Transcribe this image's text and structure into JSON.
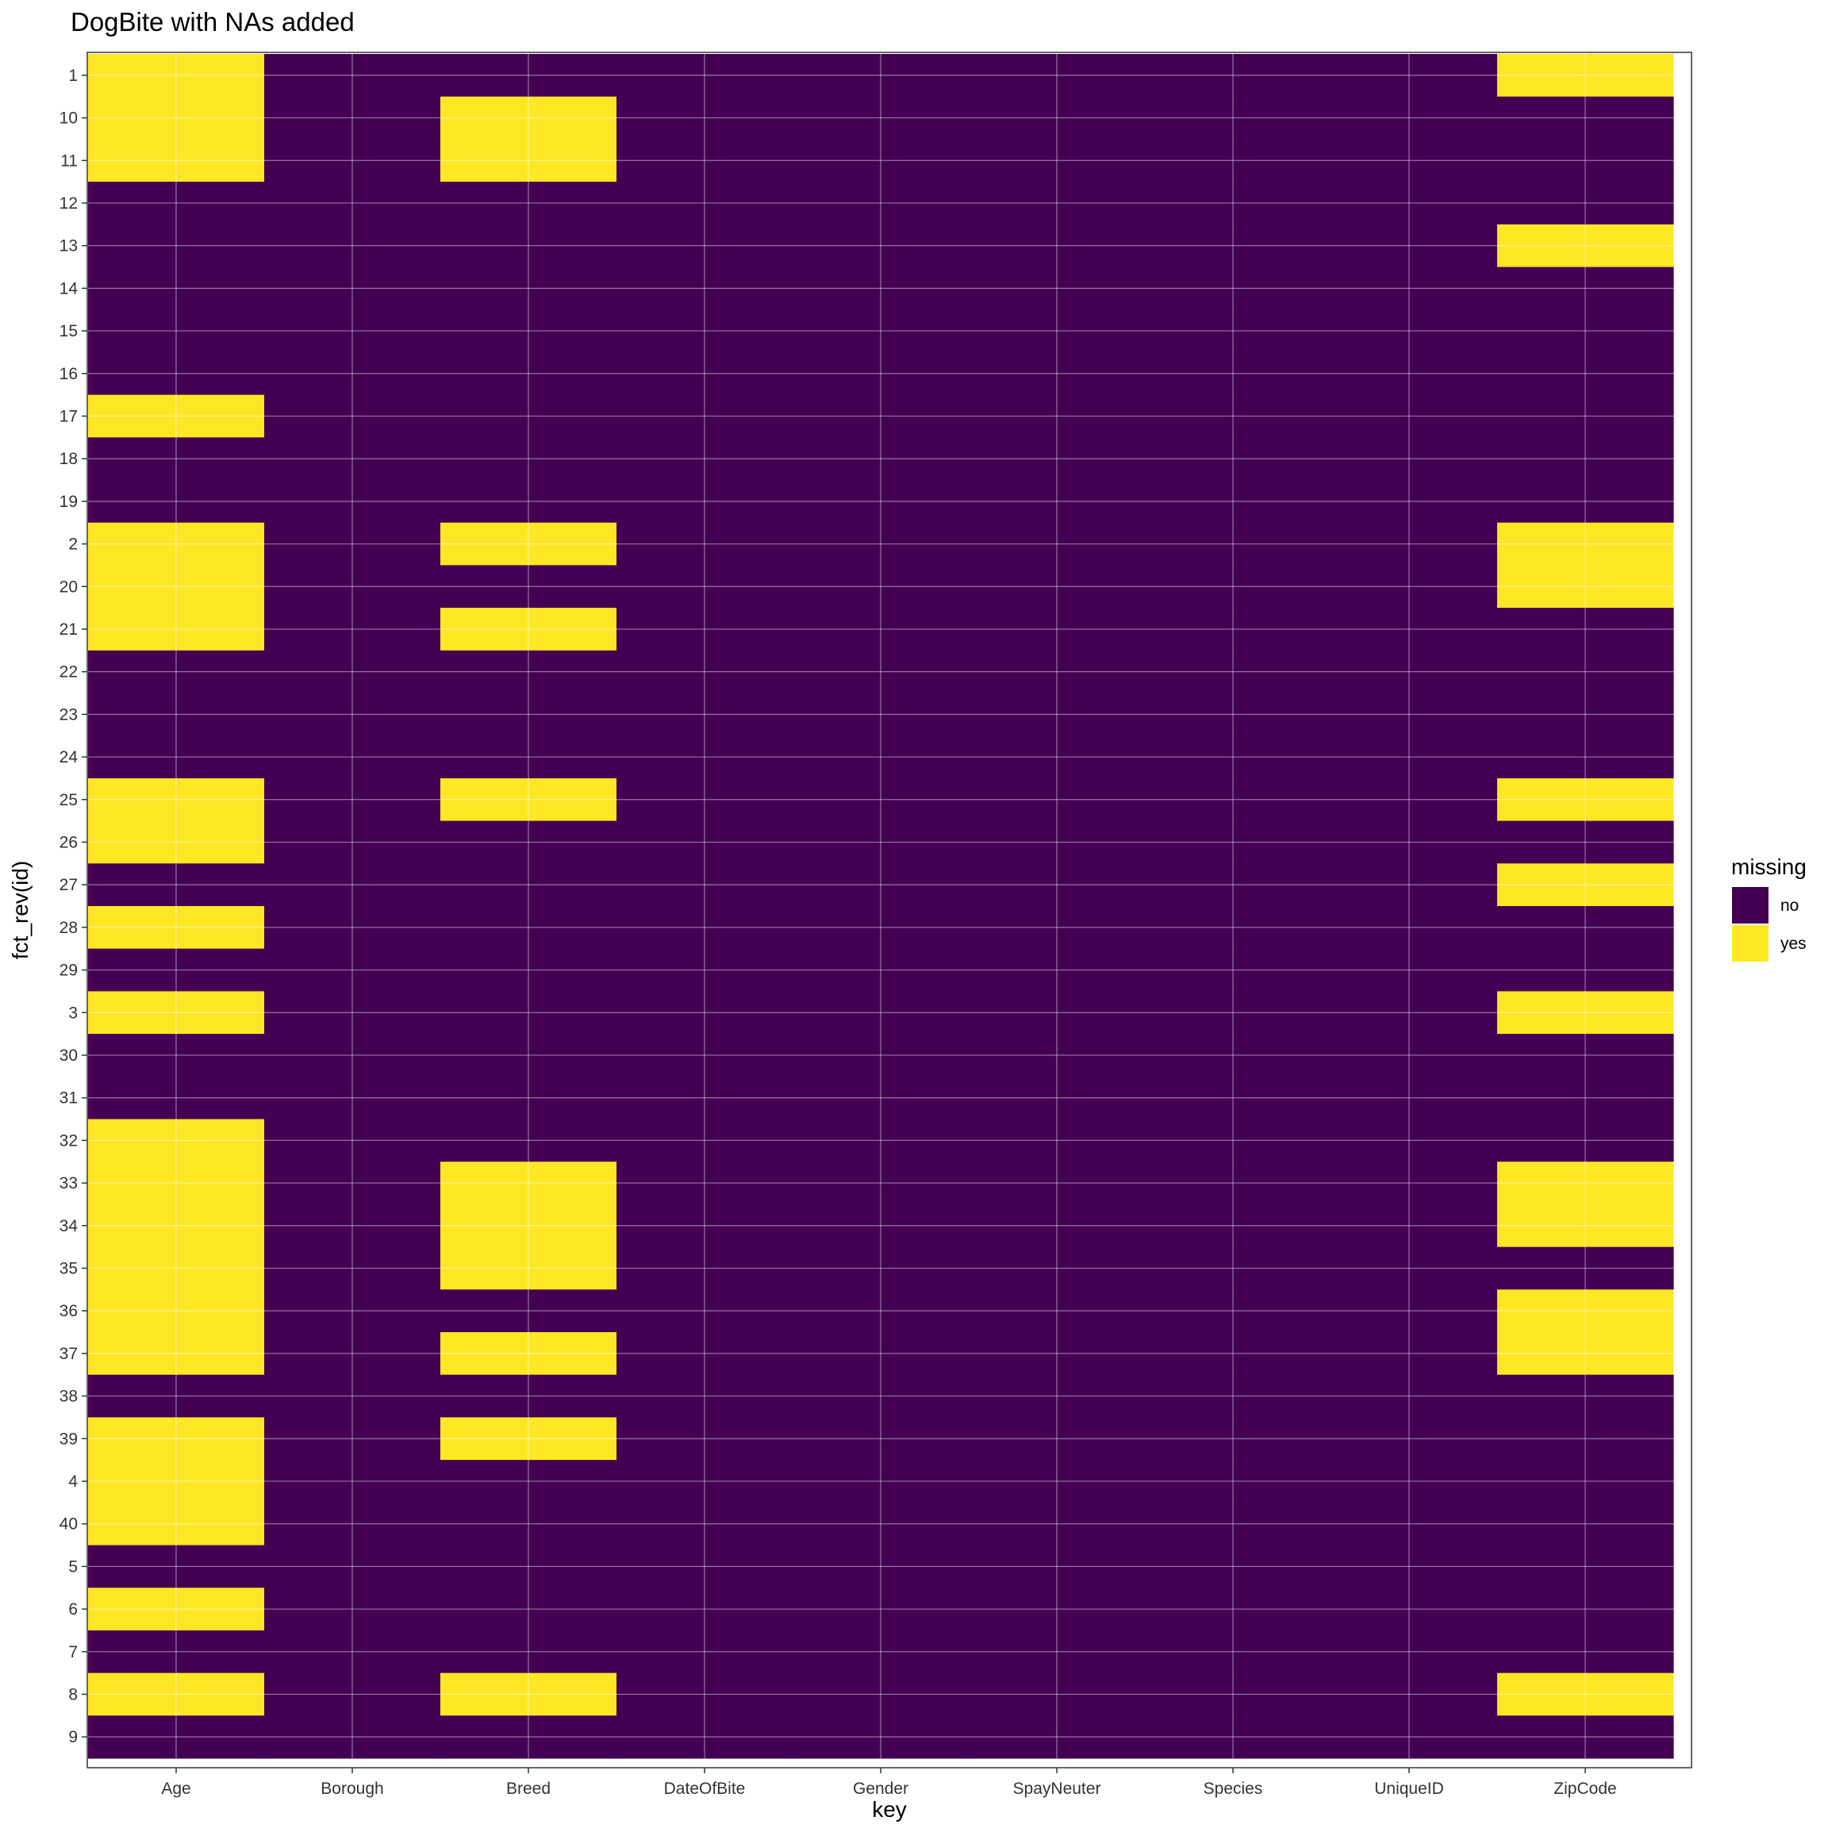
{
  "chart_data": {
    "type": "heatmap",
    "title": "DogBite with NAs added",
    "xlabel": "key",
    "ylabel": "fct_rev(id)",
    "x_categories": [
      "Age",
      "Borough",
      "Breed",
      "DateOfBite",
      "Gender",
      "SpayNeuter",
      "Species",
      "UniqueID",
      "ZipCode"
    ],
    "y_categories": [
      "1",
      "10",
      "11",
      "12",
      "13",
      "14",
      "15",
      "16",
      "17",
      "18",
      "19",
      "2",
      "20",
      "21",
      "22",
      "23",
      "24",
      "25",
      "26",
      "27",
      "28",
      "29",
      "3",
      "30",
      "31",
      "32",
      "33",
      "34",
      "35",
      "36",
      "37",
      "38",
      "39",
      "4",
      "40",
      "5",
      "6",
      "7",
      "8",
      "9"
    ],
    "legend": {
      "title": "missing",
      "position": "right",
      "entries": [
        {
          "label": "no",
          "color": "#440154"
        },
        {
          "label": "yes",
          "color": "#FDE725"
        }
      ]
    },
    "colors": {
      "no": "#440154",
      "yes": "#FDE725"
    },
    "missing": {
      "Age": [
        "yes",
        "yes",
        "yes",
        "no",
        "no",
        "no",
        "no",
        "no",
        "yes",
        "no",
        "no",
        "yes",
        "yes",
        "yes",
        "no",
        "no",
        "no",
        "yes",
        "yes",
        "no",
        "yes",
        "no",
        "yes",
        "no",
        "no",
        "yes",
        "yes",
        "yes",
        "yes",
        "yes",
        "yes",
        "no",
        "yes",
        "yes",
        "yes",
        "no",
        "yes",
        "no",
        "yes",
        "no"
      ],
      "Borough": [
        "no",
        "no",
        "no",
        "no",
        "no",
        "no",
        "no",
        "no",
        "no",
        "no",
        "no",
        "no",
        "no",
        "no",
        "no",
        "no",
        "no",
        "no",
        "no",
        "no",
        "no",
        "no",
        "no",
        "no",
        "no",
        "no",
        "no",
        "no",
        "no",
        "no",
        "no",
        "no",
        "no",
        "no",
        "no",
        "no",
        "no",
        "no",
        "no",
        "no"
      ],
      "Breed": [
        "no",
        "yes",
        "yes",
        "no",
        "no",
        "no",
        "no",
        "no",
        "no",
        "no",
        "no",
        "yes",
        "no",
        "yes",
        "no",
        "no",
        "no",
        "yes",
        "no",
        "no",
        "no",
        "no",
        "no",
        "no",
        "no",
        "no",
        "yes",
        "yes",
        "yes",
        "no",
        "yes",
        "no",
        "yes",
        "no",
        "no",
        "no",
        "no",
        "no",
        "yes",
        "no"
      ],
      "DateOfBite": [
        "no",
        "no",
        "no",
        "no",
        "no",
        "no",
        "no",
        "no",
        "no",
        "no",
        "no",
        "no",
        "no",
        "no",
        "no",
        "no",
        "no",
        "no",
        "no",
        "no",
        "no",
        "no",
        "no",
        "no",
        "no",
        "no",
        "no",
        "no",
        "no",
        "no",
        "no",
        "no",
        "no",
        "no",
        "no",
        "no",
        "no",
        "no",
        "no",
        "no"
      ],
      "Gender": [
        "no",
        "no",
        "no",
        "no",
        "no",
        "no",
        "no",
        "no",
        "no",
        "no",
        "no",
        "no",
        "no",
        "no",
        "no",
        "no",
        "no",
        "no",
        "no",
        "no",
        "no",
        "no",
        "no",
        "no",
        "no",
        "no",
        "no",
        "no",
        "no",
        "no",
        "no",
        "no",
        "no",
        "no",
        "no",
        "no",
        "no",
        "no",
        "no",
        "no"
      ],
      "SpayNeuter": [
        "no",
        "no",
        "no",
        "no",
        "no",
        "no",
        "no",
        "no",
        "no",
        "no",
        "no",
        "no",
        "no",
        "no",
        "no",
        "no",
        "no",
        "no",
        "no",
        "no",
        "no",
        "no",
        "no",
        "no",
        "no",
        "no",
        "no",
        "no",
        "no",
        "no",
        "no",
        "no",
        "no",
        "no",
        "no",
        "no",
        "no",
        "no",
        "no",
        "no"
      ],
      "Species": [
        "no",
        "no",
        "no",
        "no",
        "no",
        "no",
        "no",
        "no",
        "no",
        "no",
        "no",
        "no",
        "no",
        "no",
        "no",
        "no",
        "no",
        "no",
        "no",
        "no",
        "no",
        "no",
        "no",
        "no",
        "no",
        "no",
        "no",
        "no",
        "no",
        "no",
        "no",
        "no",
        "no",
        "no",
        "no",
        "no",
        "no",
        "no",
        "no",
        "no"
      ],
      "UniqueID": [
        "no",
        "no",
        "no",
        "no",
        "no",
        "no",
        "no",
        "no",
        "no",
        "no",
        "no",
        "no",
        "no",
        "no",
        "no",
        "no",
        "no",
        "no",
        "no",
        "no",
        "no",
        "no",
        "no",
        "no",
        "no",
        "no",
        "no",
        "no",
        "no",
        "no",
        "no",
        "no",
        "no",
        "no",
        "no",
        "no",
        "no",
        "no",
        "no",
        "no"
      ],
      "ZipCode": [
        "yes",
        "no",
        "no",
        "no",
        "yes",
        "no",
        "no",
        "no",
        "no",
        "no",
        "no",
        "yes",
        "yes",
        "no",
        "no",
        "no",
        "no",
        "yes",
        "no",
        "yes",
        "no",
        "no",
        "yes",
        "no",
        "no",
        "no",
        "yes",
        "yes",
        "no",
        "yes",
        "yes",
        "no",
        "no",
        "no",
        "no",
        "no",
        "no",
        "no",
        "yes",
        "no"
      ]
    },
    "grid": true
  }
}
